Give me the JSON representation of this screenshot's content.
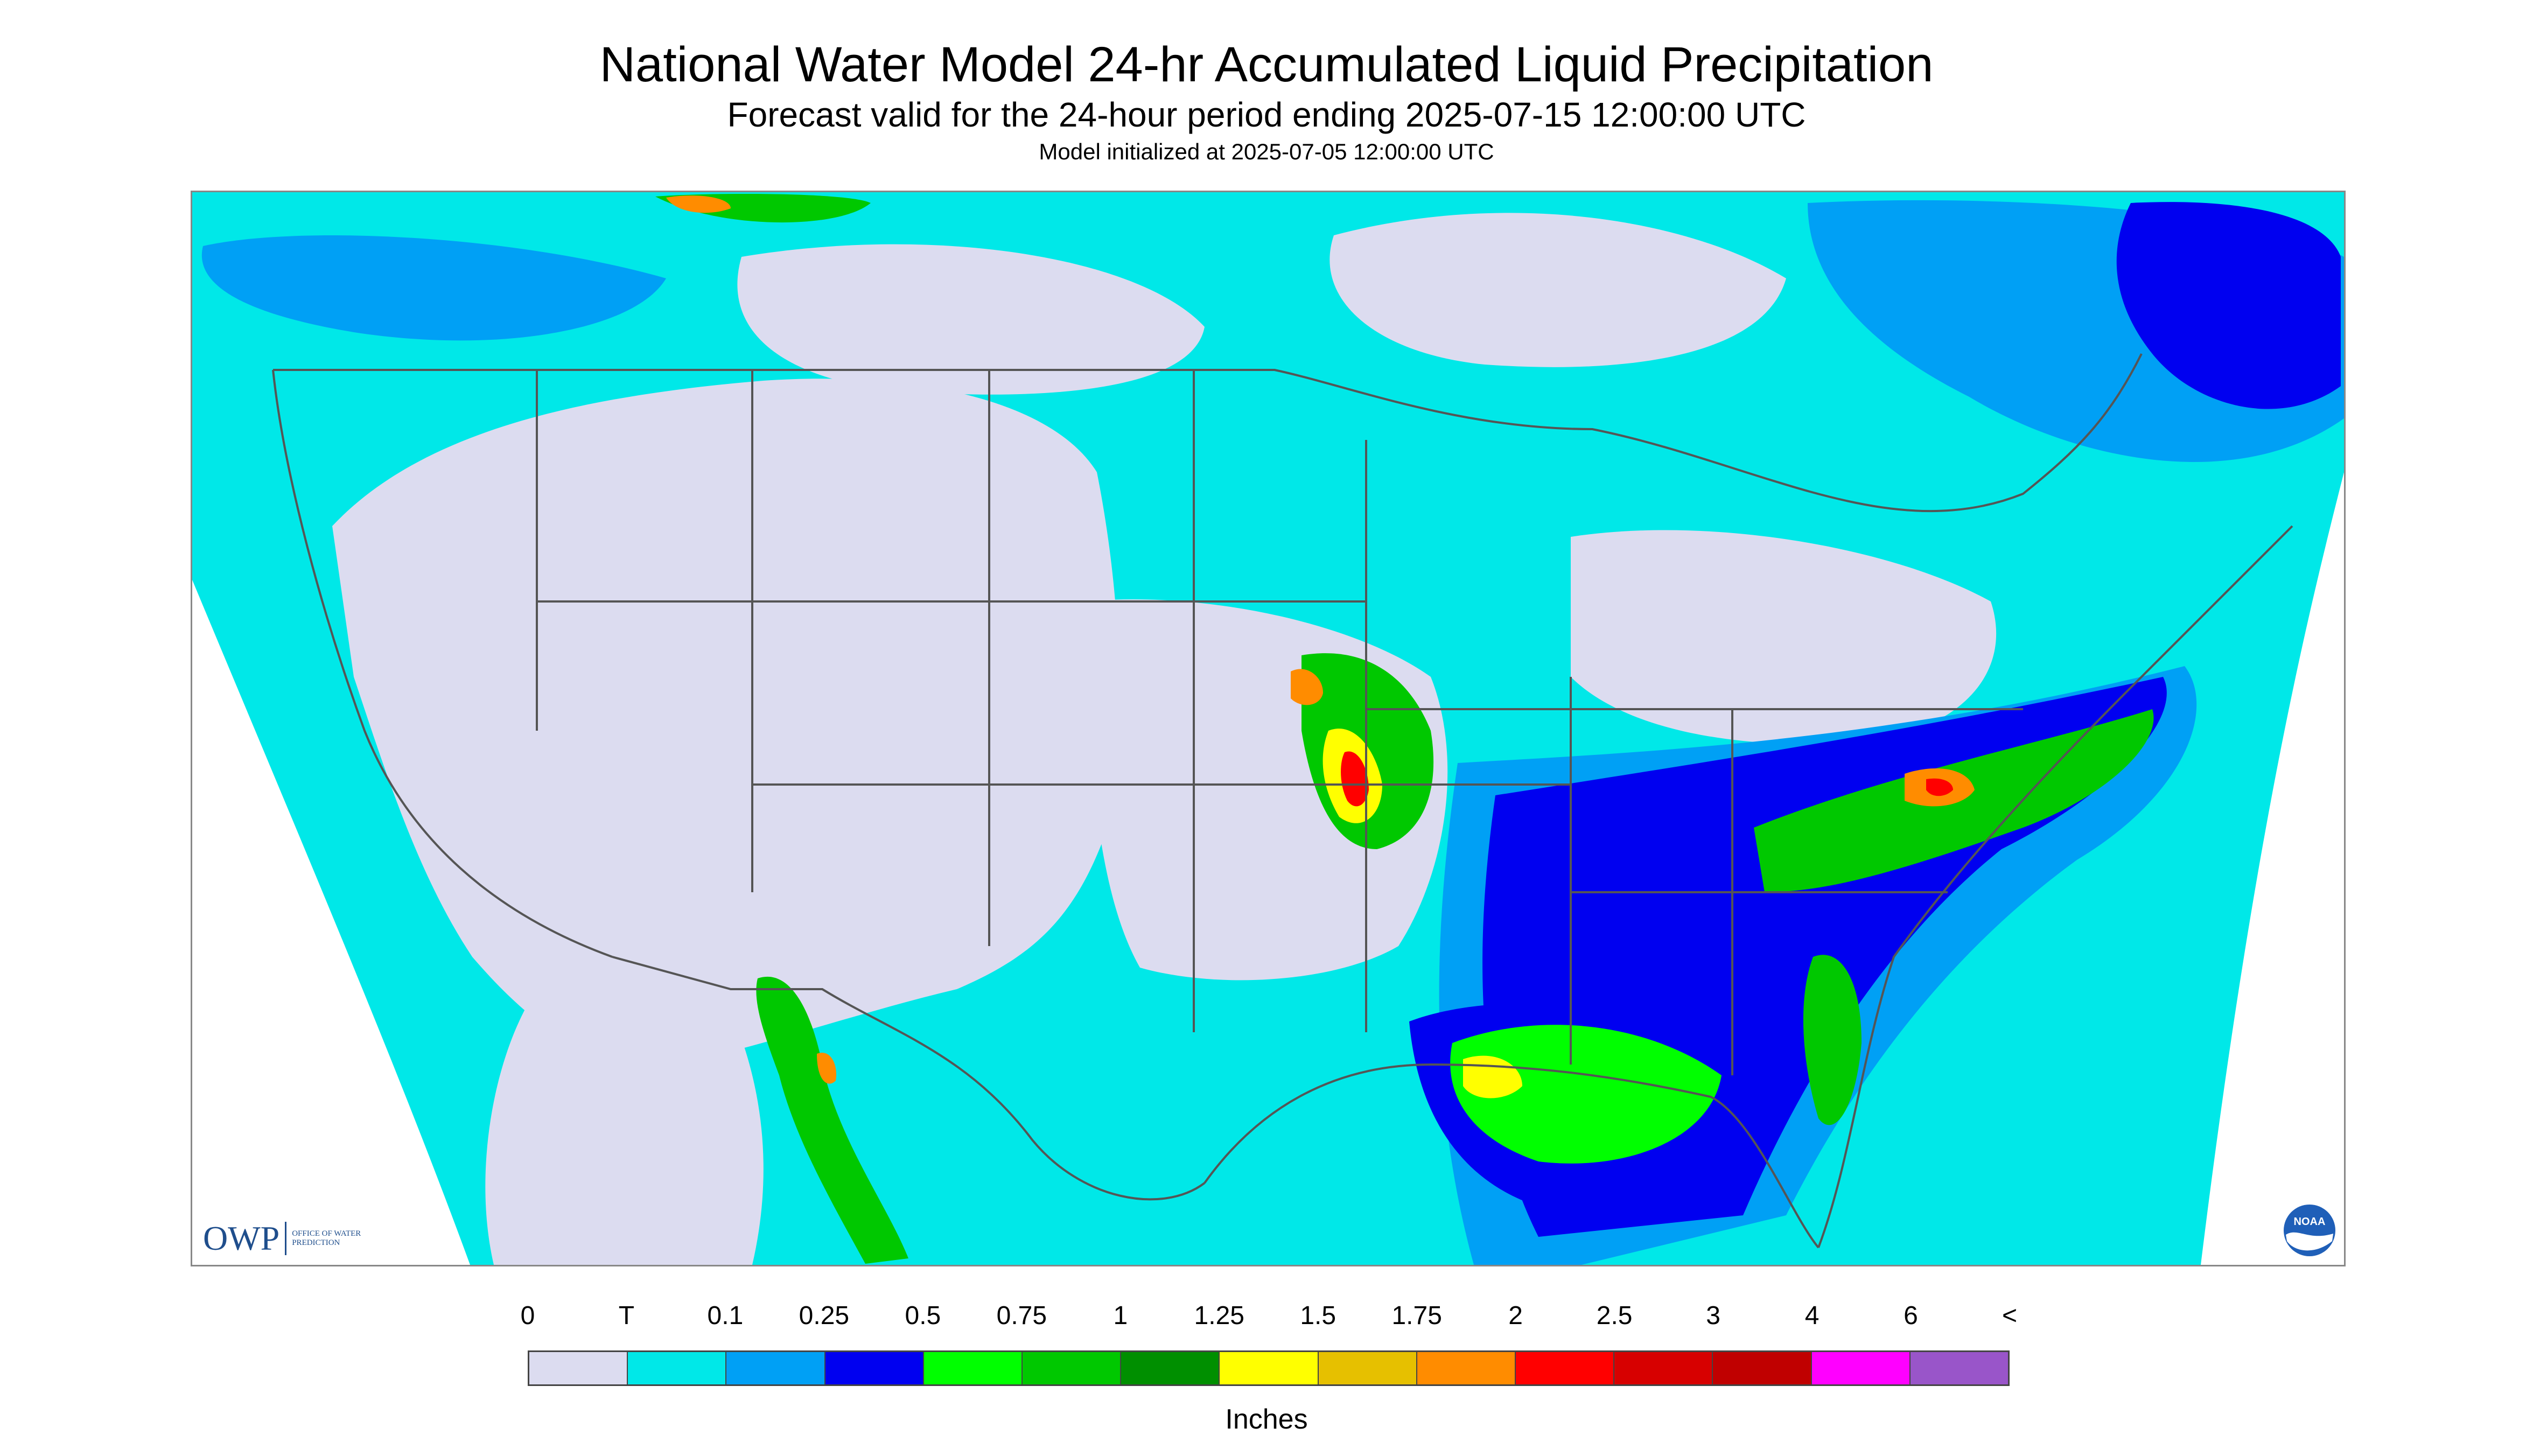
{
  "header": {
    "title": "National Water Model 24-hr Accumulated Liquid Precipitation",
    "subtitle": "Forecast valid for the 24-hour period ending 2025-07-15 12:00:00 UTC",
    "init": "Model initialized at 2025-07-05 12:00:00 UTC"
  },
  "logos": {
    "owp_text": "OWP",
    "owp_sub": "OFFICE OF WATER PREDICTION",
    "noaa_text": "NOAA"
  },
  "legend": {
    "labels": [
      "0",
      "T",
      "0.1",
      "0.25",
      "0.5",
      "0.75",
      "1",
      "1.25",
      "1.5",
      "1.75",
      "2",
      "2.5",
      "3",
      "4",
      "6",
      "<"
    ],
    "colors": [
      "#dcdcf0",
      "#00e8e8",
      "#00a0f5",
      "#0000f0",
      "#00ff00",
      "#00c800",
      "#008f00",
      "#ffff00",
      "#e6c000",
      "#ff8c00",
      "#ff0000",
      "#d70000",
      "#c00000",
      "#ff00ff",
      "#9955c9"
    ],
    "units": "Inches"
  },
  "map": {
    "colors": {
      "nodata": "#ffffff",
      "trace": "#00e8e8",
      "light": "#00a0f5",
      "mod": "#0000f0",
      "green": "#00ff00",
      "green2": "#00c800",
      "green3": "#008f00",
      "yellow": "#ffff00",
      "gold": "#e6c000",
      "orange": "#ff8c00",
      "red": "#ff0000",
      "dry": "#dcdcf0",
      "border": "#555555"
    }
  }
}
